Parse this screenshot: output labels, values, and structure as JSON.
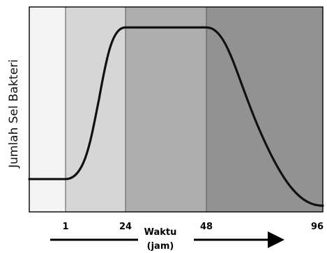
{
  "chart_data": {
    "type": "line",
    "ylabel": "Jumlah Sel Bakteri",
    "xlabel_line1": "Waktu",
    "xlabel_line2": "(jam)",
    "x_ticks": [
      "1",
      "24",
      "48",
      "96"
    ],
    "phases": [
      {
        "from": 0,
        "to": 1,
        "color": "#f3f3f3"
      },
      {
        "from": 1,
        "to": 24,
        "color": "#d6d6d6"
      },
      {
        "from": 24,
        "to": 48,
        "color": "#adadad"
      },
      {
        "from": 48,
        "to": 96,
        "color": "#929292"
      }
    ],
    "series": [
      {
        "x": [
          0,
          1,
          12,
          24,
          48,
          72,
          96
        ],
        "y": [
          0.16,
          0.16,
          0.55,
          0.9,
          0.9,
          0.45,
          0.03
        ]
      }
    ],
    "ylim": [
      0,
      1
    ],
    "grid": false,
    "legend": "none",
    "line_color": "#111111"
  }
}
